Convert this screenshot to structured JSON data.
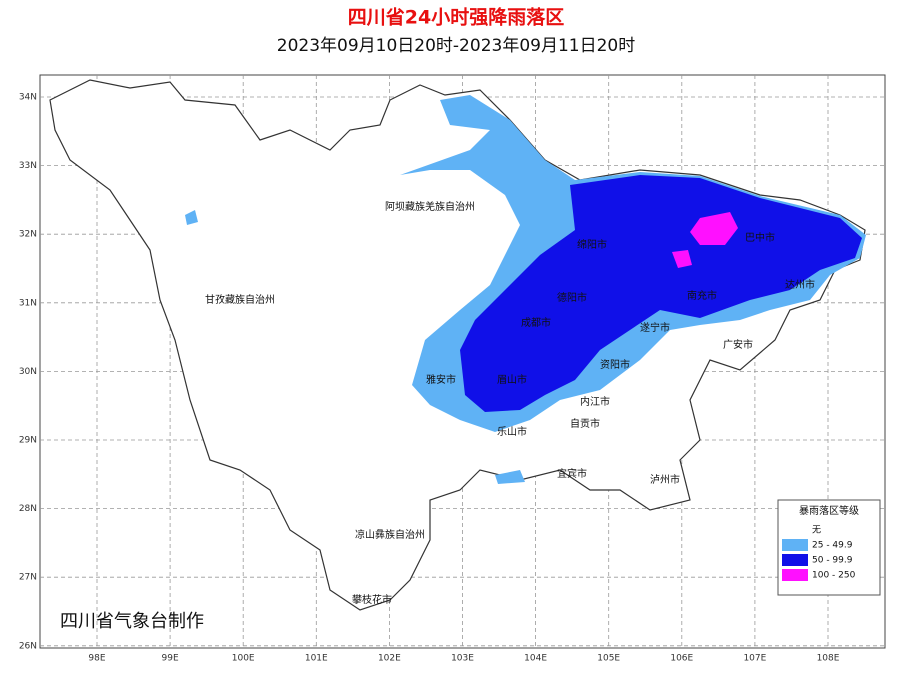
{
  "header": {
    "title": "四川省24小时强降雨落区",
    "subtitle": "2023年09月10日20时-2023年09月11日20时"
  },
  "lat_ticks": [
    {
      "value": 34,
      "label": "34N"
    },
    {
      "value": 33,
      "label": "33N"
    },
    {
      "value": 32,
      "label": "32N"
    },
    {
      "value": 31,
      "label": "31N"
    },
    {
      "value": 30,
      "label": "30N"
    },
    {
      "value": 29,
      "label": "29N"
    },
    {
      "value": 28,
      "label": "28N"
    },
    {
      "value": 27,
      "label": "27N"
    },
    {
      "value": 26,
      "label": "26N"
    }
  ],
  "lon_ticks": [
    {
      "value": 98,
      "label": "98E"
    },
    {
      "value": 99,
      "label": "99E"
    },
    {
      "value": 100,
      "label": "100E"
    },
    {
      "value": 101,
      "label": "101E"
    },
    {
      "value": 102,
      "label": "102E"
    },
    {
      "value": 103,
      "label": "103E"
    },
    {
      "value": 104,
      "label": "104E"
    },
    {
      "value": 105,
      "label": "105E"
    },
    {
      "value": 106,
      "label": "106E"
    },
    {
      "value": 107,
      "label": "107E"
    },
    {
      "value": 108,
      "label": "108E"
    }
  ],
  "places": [
    "阿坝藏族羌族自治州",
    "甘孜藏族自治州",
    "凉山彝族自治州",
    "攀枝花市",
    "绵阳市",
    "德阳市",
    "成都市",
    "雅安市",
    "眉山市",
    "乐山市",
    "资阳市",
    "内江市",
    "自贡市",
    "宜宾市",
    "泸州市",
    "遂宁市",
    "南充市",
    "巴中市",
    "达州市",
    "广安市"
  ],
  "legend": {
    "title": "暴雨落区等级",
    "items": [
      {
        "label": "无",
        "color": "#ffffff"
      },
      {
        "label": "25 - 49.9",
        "color": "#5fb2f5"
      },
      {
        "label": "50 - 99.9",
        "color": "#1010e8"
      },
      {
        "label": "100 - 250",
        "color": "#ff10ff"
      }
    ]
  },
  "credit": "四川省气象台制作"
}
